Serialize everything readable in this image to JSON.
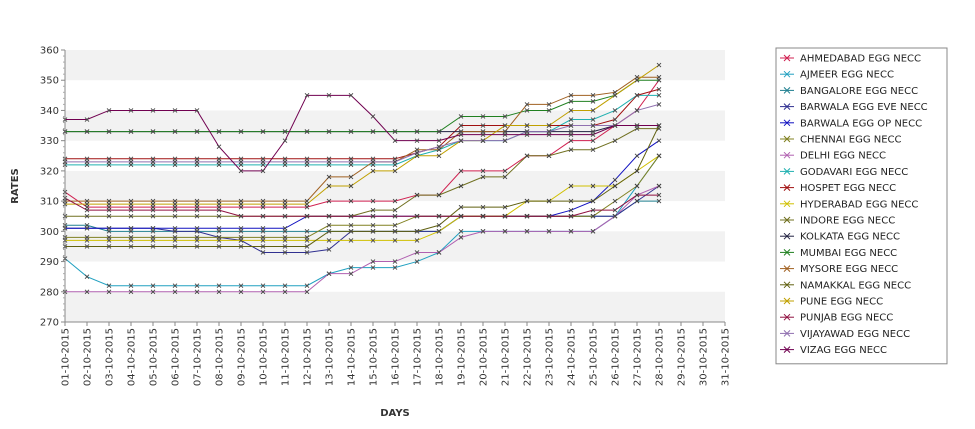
{
  "chart_data": {
    "type": "line",
    "title": "",
    "xlabel": "DAYS",
    "ylabel": "RATES",
    "ylim": [
      270,
      360
    ],
    "yticks": [
      270,
      280,
      290,
      300,
      310,
      320,
      330,
      340,
      350,
      360
    ],
    "grid": "alternating horizontal bands",
    "legend_position": "right",
    "categories": [
      "01-10-2015",
      "02-10-2015",
      "03-10-2015",
      "04-10-2015",
      "05-10-2015",
      "06-10-2015",
      "07-10-2015",
      "08-10-2015",
      "09-10-2015",
      "10-10-2015",
      "11-10-2015",
      "12-10-2015",
      "13-10-2015",
      "14-10-2015",
      "15-10-2015",
      "16-10-2015",
      "17-10-2015",
      "18-10-2015",
      "19-10-2015",
      "20-10-2015",
      "21-10-2015",
      "22-10-2015",
      "23-10-2015",
      "24-10-2015",
      "25-10-2015",
      "26-10-2015",
      "27-10-2015",
      "28-10-2015",
      "29-10-2015",
      "30-10-2015",
      "31-10-2015"
    ],
    "series": [
      {
        "name": "AHMEDABAD EGG NECC",
        "color": "#d02050",
        "values": [
          313,
          308,
          308,
          308,
          308,
          308,
          308,
          308,
          308,
          308,
          308,
          308,
          310,
          310,
          310,
          310,
          312,
          312,
          320,
          320,
          320,
          325,
          325,
          330,
          330,
          335,
          340,
          350,
          null,
          null,
          null
        ]
      },
      {
        "name": "AJMEER EGG NECC",
        "color": "#20a0c0",
        "values": [
          291,
          285,
          282,
          282,
          282,
          282,
          282,
          282,
          282,
          282,
          282,
          282,
          286,
          288,
          288,
          288,
          290,
          293,
          300,
          300,
          300,
          300,
          300,
          300,
          300,
          305,
          315,
          325,
          null,
          null,
          null
        ]
      },
      {
        "name": "BANGALORE EGG NECC",
        "color": "#208090",
        "values": [
          302,
          302,
          300,
          300,
          300,
          300,
          300,
          300,
          300,
          300,
          300,
          300,
          300,
          300,
          300,
          300,
          300,
          300,
          305,
          305,
          305,
          305,
          305,
          305,
          305,
          305,
          310,
          310,
          null,
          null,
          null
        ]
      },
      {
        "name": "BARWALA EGG EVE NECC",
        "color": "#303090",
        "values": [
          301,
          301,
          301,
          301,
          301,
          300,
          300,
          298,
          297,
          293,
          293,
          293,
          294,
          300,
          300,
          300,
          300,
          300,
          305,
          305,
          305,
          305,
          305,
          305,
          305,
          305,
          310,
          315,
          null,
          null,
          null
        ]
      },
      {
        "name": "BARWALA EGG OP NECC",
        "color": "#1010c0",
        "values": [
          301,
          301,
          301,
          301,
          301,
          301,
          301,
          301,
          301,
          301,
          301,
          305,
          305,
          305,
          305,
          305,
          305,
          305,
          305,
          305,
          305,
          305,
          305,
          307,
          310,
          317,
          325,
          330,
          null,
          null,
          null
        ]
      },
      {
        "name": "CHENNAI EGG NECC",
        "color": "#808020",
        "values": [
          298,
          298,
          298,
          298,
          298,
          298,
          298,
          298,
          298,
          298,
          298,
          298,
          302,
          302,
          302,
          302,
          305,
          305,
          305,
          305,
          305,
          305,
          305,
          305,
          305,
          310,
          315,
          325,
          null,
          null,
          null
        ]
      },
      {
        "name": "DELHI EGG NECC",
        "color": "#b060b0",
        "values": [
          280,
          280,
          280,
          280,
          280,
          280,
          280,
          280,
          280,
          280,
          280,
          280,
          286,
          286,
          290,
          290,
          293,
          293,
          298,
          300,
          300,
          300,
          300,
          300,
          300,
          305,
          312,
          315,
          null,
          null,
          null
        ]
      },
      {
        "name": "GODAVARI EGG NECC",
        "color": "#20b0b0",
        "values": [
          322,
          322,
          322,
          322,
          322,
          322,
          322,
          322,
          322,
          322,
          322,
          322,
          322,
          322,
          322,
          322,
          325,
          327,
          330,
          330,
          330,
          333,
          333,
          337,
          337,
          340,
          345,
          345,
          null,
          null,
          null
        ]
      },
      {
        "name": "HOSPET EGG NECC",
        "color": "#a01010",
        "values": [
          324,
          324,
          324,
          324,
          324,
          324,
          324,
          324,
          324,
          324,
          324,
          324,
          324,
          324,
          324,
          324,
          326,
          328,
          335,
          335,
          335,
          335,
          335,
          335,
          335,
          337,
          345,
          347,
          null,
          null,
          null
        ]
      },
      {
        "name": "HYDERABAD EGG NECC",
        "color": "#d0c000",
        "values": [
          297,
          297,
          297,
          297,
          297,
          297,
          297,
          297,
          297,
          297,
          297,
          297,
          297,
          297,
          297,
          297,
          297,
          300,
          305,
          305,
          305,
          310,
          310,
          315,
          315,
          315,
          320,
          325,
          null,
          null,
          null
        ]
      },
      {
        "name": "INDORE EGG NECC",
        "color": "#707020",
        "values": [
          305,
          305,
          305,
          305,
          305,
          305,
          305,
          305,
          305,
          305,
          305,
          305,
          305,
          305,
          307,
          307,
          312,
          312,
          315,
          318,
          318,
          325,
          325,
          327,
          327,
          330,
          334,
          334,
          null,
          null,
          null
        ]
      },
      {
        "name": "KOLKATA EGG NECC",
        "color": "#202040",
        "values": [
          333,
          333,
          333,
          333,
          333,
          333,
          333,
          333,
          333,
          333,
          333,
          333,
          333,
          333,
          333,
          333,
          333,
          333,
          333,
          333,
          333,
          333,
          333,
          333,
          333,
          335,
          335,
          335,
          null,
          null,
          null
        ]
      },
      {
        "name": "MUMBAI EGG NECC",
        "color": "#208020",
        "values": [
          333,
          333,
          333,
          333,
          333,
          333,
          333,
          333,
          333,
          333,
          333,
          333,
          333,
          333,
          333,
          333,
          333,
          333,
          338,
          338,
          338,
          340,
          340,
          343,
          343,
          345,
          350,
          350,
          null,
          null,
          null
        ]
      },
      {
        "name": "MYSORE EGG NECC",
        "color": "#a06020",
        "values": [
          310,
          310,
          310,
          310,
          310,
          310,
          310,
          310,
          310,
          310,
          310,
          310,
          318,
          318,
          323,
          323,
          327,
          327,
          333,
          333,
          333,
          342,
          342,
          345,
          345,
          346,
          351,
          351,
          null,
          null,
          null
        ]
      },
      {
        "name": "NAMAKKAL EGG NECC",
        "color": "#606010",
        "values": [
          295,
          295,
          295,
          295,
          295,
          295,
          295,
          295,
          295,
          295,
          295,
          295,
          300,
          300,
          300,
          300,
          300,
          302,
          308,
          308,
          308,
          310,
          310,
          310,
          310,
          315,
          320,
          335,
          null,
          null,
          null
        ]
      },
      {
        "name": "PUNE EGG NECC",
        "color": "#c0a000",
        "values": [
          309,
          309,
          309,
          309,
          309,
          309,
          309,
          309,
          309,
          309,
          309,
          309,
          315,
          315,
          320,
          320,
          325,
          325,
          330,
          330,
          335,
          335,
          335,
          340,
          340,
          345,
          350,
          355,
          null,
          null,
          null
        ]
      },
      {
        "name": "PUNJAB EGG NECC",
        "color": "#901040",
        "values": [
          311,
          307,
          307,
          307,
          307,
          307,
          307,
          307,
          305,
          305,
          305,
          305,
          305,
          305,
          305,
          305,
          305,
          305,
          305,
          305,
          305,
          305,
          305,
          305,
          307,
          307,
          312,
          312,
          null,
          null,
          null
        ]
      },
      {
        "name": "VIJAYAWAD EGG NECC",
        "color": "#9070b0",
        "values": [
          323,
          323,
          323,
          323,
          323,
          323,
          323,
          323,
          323,
          323,
          323,
          323,
          323,
          323,
          323,
          323,
          326,
          328,
          330,
          330,
          330,
          333,
          333,
          335,
          335,
          335,
          340,
          342,
          null,
          null,
          null
        ]
      },
      {
        "name": "VIZAG EGG NECC",
        "color": "#700050",
        "values": [
          337,
          337,
          340,
          340,
          340,
          340,
          340,
          328,
          320,
          320,
          330,
          345,
          345,
          345,
          338,
          330,
          330,
          330,
          332,
          332,
          332,
          332,
          332,
          332,
          332,
          335,
          335,
          335,
          null,
          null,
          null
        ]
      }
    ]
  }
}
